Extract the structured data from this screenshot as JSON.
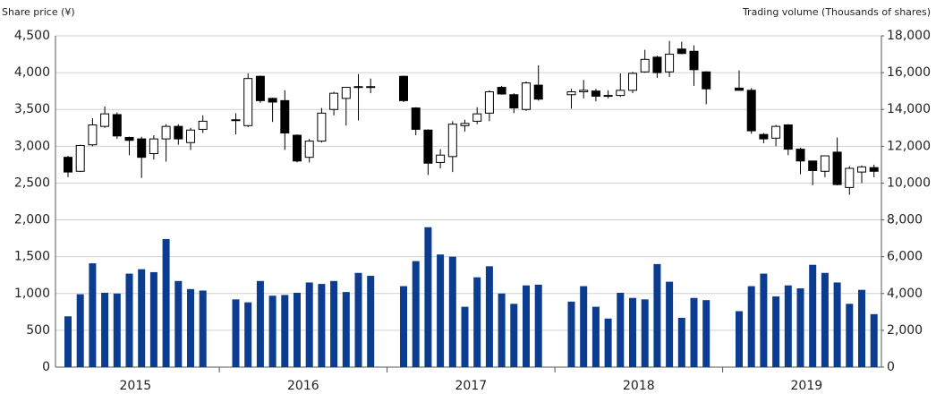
{
  "chart_data": {
    "type": "candlestick",
    "y_title": "Share price (¥)",
    "y2_title": "Trading volume (Thousands of shares)",
    "years": [
      "2015",
      "2016",
      "2017",
      "2018",
      "2019"
    ],
    "open": [
      2850,
      2660,
      3020,
      3270,
      3430,
      3120,
      3100,
      2900,
      3100,
      3270,
      3050,
      3230,
      3350,
      3280,
      3950,
      3650,
      3620,
      3150,
      2850,
      3070,
      3500,
      3650,
      3800,
      3800,
      3950,
      3520,
      3220,
      2780,
      2860,
      3280,
      3340,
      3450,
      3800,
      3700,
      3500,
      3830,
      3700,
      3740,
      3750,
      3680,
      3690,
      3760,
      4010,
      4210,
      4010,
      4320,
      4290,
      4010,
      3790,
      3760,
      3160,
      3110,
      3290,
      2960,
      2800,
      2660,
      2920,
      2440,
      2650,
      2710
    ],
    "high": [
      2870,
      3020,
      3380,
      3540,
      3460,
      3130,
      3130,
      3150,
      3300,
      3300,
      3250,
      3420,
      3450,
      3990,
      3960,
      3660,
      3760,
      3160,
      3100,
      3520,
      3740,
      3800,
      3980,
      3920,
      3960,
      3530,
      3230,
      2960,
      3340,
      3360,
      3530,
      3760,
      3820,
      3720,
      3880,
      4100,
      3780,
      3900,
      3780,
      3760,
      3990,
      4010,
      4310,
      4230,
      4430,
      4420,
      4370,
      4020,
      4030,
      3790,
      3180,
      3290,
      3300,
      2980,
      2800,
      2870,
      3120,
      2730,
      2740,
      2750
    ],
    "low": [
      2580,
      2650,
      3000,
      3250,
      3100,
      2880,
      2570,
      2820,
      2790,
      3020,
      2950,
      3180,
      3160,
      3260,
      3590,
      3330,
      2950,
      2780,
      2780,
      3050,
      3420,
      3280,
      3350,
      3720,
      3600,
      3150,
      2610,
      2700,
      2650,
      3200,
      3300,
      3340,
      3700,
      3450,
      3480,
      3620,
      3510,
      3650,
      3610,
      3650,
      3670,
      3720,
      4000,
      3930,
      3940,
      4250,
      3820,
      3570,
      3760,
      3170,
      3040,
      3000,
      2880,
      2620,
      2470,
      2580,
      2470,
      2340,
      2500,
      2580
    ],
    "close": [
      2650,
      3010,
      3290,
      3440,
      3140,
      3080,
      2850,
      3100,
      3270,
      3100,
      3220,
      3340,
      3360,
      3920,
      3620,
      3600,
      3180,
      2800,
      3070,
      3450,
      3720,
      3800,
      3810,
      3810,
      3620,
      3230,
      2770,
      2880,
      3300,
      3310,
      3440,
      3740,
      3710,
      3520,
      3860,
      3640,
      3740,
      3760,
      3680,
      3690,
      3760,
      3990,
      4180,
      4000,
      4250,
      4260,
      4040,
      3780,
      3760,
      3210,
      3100,
      3270,
      2960,
      2800,
      2670,
      2870,
      2480,
      2700,
      2720,
      2660
    ],
    "volume": [
      2760,
      3960,
      5640,
      4040,
      4000,
      5080,
      5320,
      5160,
      6960,
      4680,
      4240,
      4160,
      3680,
      3520,
      4680,
      3880,
      3920,
      4040,
      4600,
      4520,
      4680,
      4080,
      5120,
      4960,
      4400,
      5760,
      7600,
      6120,
      6000,
      3280,
      4880,
      5480,
      4000,
      3440,
      4440,
      4480,
      3560,
      4400,
      3280,
      2640,
      4040,
      3760,
      3680,
      5600,
      4640,
      2680,
      3760,
      3640,
      3040,
      4400,
      5080,
      3840,
      4440,
      4280,
      5560,
      5120,
      4600,
      3440,
      4200,
      2880
    ],
    "up_color": "#ffffff",
    "down_color": "#000000",
    "volume_color": "#0b3c8f",
    "ylim": [
      0,
      4500
    ],
    "yticks": [
      0,
      500,
      {
        "value": 1000,
        "label": "1,000"
      },
      {
        "value": 1500,
        "label": "1,500"
      },
      {
        "value": 2000,
        "label": "2,000"
      },
      {
        "value": 2500,
        "label": "2,500"
      },
      {
        "value": 3000,
        "label": "3,000"
      },
      {
        "value": 3500,
        "label": "3,500"
      },
      {
        "value": 4000,
        "label": "4,000"
      },
      {
        "value": 4500,
        "label": "4,500"
      }
    ],
    "y2lim": [
      0,
      18000
    ],
    "y2ticks": [
      0,
      {
        "value": 2000,
        "label": "2,000"
      },
      {
        "value": 4000,
        "label": "4,000"
      },
      {
        "value": 6000,
        "label": "6,000"
      },
      {
        "value": 8000,
        "label": "8,000"
      },
      {
        "value": 10000,
        "label": "10,000"
      },
      {
        "value": 12000,
        "label": "12,000"
      },
      {
        "value": 14000,
        "label": "14,000"
      },
      {
        "value": 16000,
        "label": "16,000"
      },
      {
        "value": 18000,
        "label": "18,000"
      }
    ],
    "grid": true
  }
}
